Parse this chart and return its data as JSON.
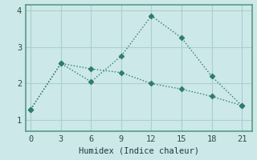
{
  "xlabel": "Humidex (Indice chaleur)",
  "bg_color": "#cce8e8",
  "line1_x": [
    0,
    3,
    6,
    9,
    12,
    15,
    18,
    21
  ],
  "line1_y": [
    1.3,
    2.55,
    2.05,
    2.75,
    3.85,
    3.25,
    2.2,
    1.4
  ],
  "line2_x": [
    0,
    3,
    6,
    9,
    12,
    15,
    18,
    21
  ],
  "line2_y": [
    1.3,
    2.55,
    2.4,
    2.3,
    2.0,
    1.85,
    1.65,
    1.4
  ],
  "line_color": "#2e7b6e",
  "xlim": [
    -0.5,
    22
  ],
  "ylim": [
    0.7,
    4.15
  ],
  "xticks": [
    0,
    3,
    6,
    9,
    12,
    15,
    18,
    21
  ],
  "yticks": [
    1,
    2,
    3,
    4
  ],
  "grid_color": "#aacfcf",
  "markersize": 3.5,
  "xlabel_fontsize": 7.5,
  "tick_fontsize": 7.5
}
